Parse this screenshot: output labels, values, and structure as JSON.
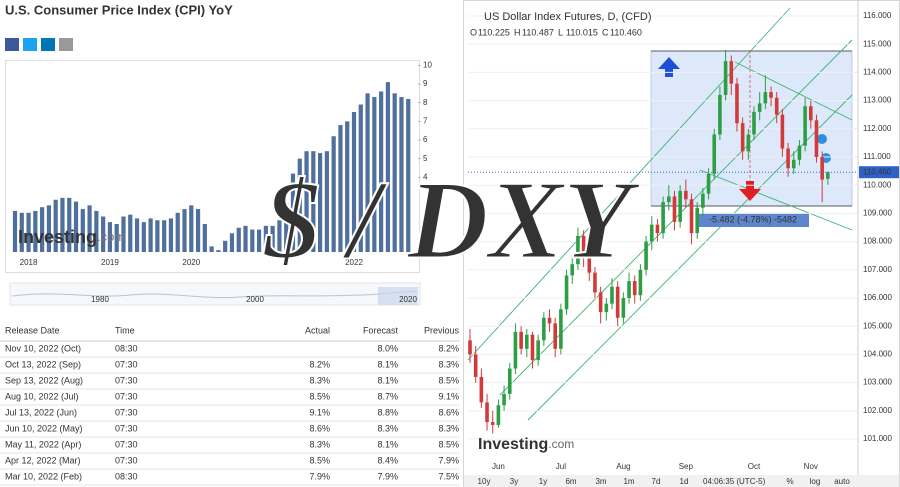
{
  "page": {
    "cpi_title": "U.S. Consumer Price Index (CPI) YoY",
    "watermark": [
      "Investing",
      ".com"
    ],
    "overlay_text": "$ / DXY"
  },
  "chart_data": [
    {
      "type": "bar",
      "categories": [
        null,
        null,
        "2018",
        null,
        null,
        null,
        null,
        null,
        null,
        null,
        null,
        null,
        null,
        null,
        "2019",
        null,
        null,
        null,
        null,
        null,
        null,
        null,
        null,
        null,
        null,
        null,
        "2020",
        null,
        null,
        null,
        null,
        null,
        null,
        null,
        null,
        null,
        null,
        null,
        null,
        null,
        null,
        null,
        null,
        null,
        null,
        null,
        null,
        null,
        null,
        null,
        "2022",
        null,
        null,
        null,
        null,
        null,
        null,
        null,
        null
      ],
      "values": [
        2.2,
        2.1,
        2.1,
        2.2,
        2.4,
        2.5,
        2.8,
        2.9,
        2.9,
        2.7,
        2.3,
        2.5,
        2.2,
        1.9,
        1.6,
        1.5,
        1.9,
        2.0,
        1.8,
        1.6,
        1.8,
        1.7,
        1.7,
        1.8,
        2.1,
        2.3,
        2.5,
        2.3,
        1.5,
        0.3,
        0.1,
        0.6,
        1.0,
        1.3,
        1.4,
        1.2,
        1.2,
        1.4,
        1.4,
        1.7,
        2.6,
        4.2,
        5.0,
        5.4,
        5.4,
        5.3,
        5.4,
        6.2,
        6.8,
        7.0,
        7.5,
        7.9,
        8.5,
        8.3,
        8.6,
        9.1,
        8.5,
        8.3,
        8.2
      ],
      "color": "#4f6f9c",
      "ylim": [
        0,
        10.5
      ],
      "yticks": [
        4,
        5,
        6,
        7,
        8,
        9,
        10
      ],
      "navigator_labels": [
        "1980",
        "2000",
        "2020"
      ]
    },
    {
      "type": "candlestick",
      "title": "US Dollar Index Futures, D, (CFD)",
      "ohlc_labels": [
        "O",
        "H",
        "L",
        "C"
      ],
      "last_labels": {
        "open": "110.225",
        "high": "110.487",
        "low": "110.015",
        "close": "110.460"
      },
      "categories": [
        null,
        null,
        null,
        null,
        null,
        "Jun",
        null,
        null,
        null,
        null,
        null,
        null,
        null,
        null,
        null,
        null,
        "Jul",
        null,
        null,
        null,
        null,
        null,
        null,
        null,
        null,
        null,
        null,
        "Aug",
        null,
        null,
        null,
        null,
        null,
        null,
        null,
        null,
        null,
        null,
        "Sep",
        null,
        null,
        null,
        null,
        null,
        null,
        null,
        null,
        null,
        null,
        null,
        "Oct",
        null,
        null,
        null,
        null,
        null,
        null,
        null,
        null,
        null,
        "Nov",
        null,
        null,
        null
      ],
      "open": [
        104.5,
        104.0,
        103.2,
        102.3,
        101.6,
        101.5,
        102.2,
        102.6,
        103.5,
        104.8,
        104.2,
        104.7,
        103.8,
        104.5,
        105.3,
        105.1,
        104.2,
        105.6,
        106.8,
        107.2,
        108.2,
        107.4,
        106.9,
        106.2,
        105.5,
        105.8,
        106.4,
        105.3,
        106.0,
        106.6,
        106.1,
        107.0,
        108.0,
        108.6,
        108.3,
        109.4,
        109.6,
        108.7,
        109.8,
        109.5,
        108.3,
        109.2,
        109.7,
        110.4,
        111.8,
        113.2,
        114.4,
        113.6,
        112.2,
        111.2,
        111.8,
        112.6,
        112.9,
        113.3,
        113.1,
        112.5,
        111.3,
        110.6,
        110.9,
        111.4,
        112.8,
        112.3,
        111.0,
        110.225
      ],
      "high": [
        104.9,
        104.3,
        103.5,
        102.6,
        102.0,
        102.4,
        102.9,
        103.7,
        105.1,
        105.0,
        104.9,
        104.8,
        104.7,
        105.5,
        105.6,
        105.3,
        105.8,
        107.0,
        107.5,
        108.5,
        108.4,
        107.7,
        107.1,
        106.4,
        106.0,
        106.7,
        106.6,
        106.2,
        106.9,
        106.8,
        107.2,
        108.2,
        108.9,
        108.8,
        109.6,
        110.0,
        109.8,
        110.0,
        110.2,
        109.7,
        109.4,
        109.9,
        110.6,
        112.0,
        113.5,
        114.8,
        114.6,
        113.8,
        112.4,
        112.0,
        112.8,
        113.3,
        113.9,
        113.5,
        113.3,
        112.7,
        111.5,
        111.2,
        111.6,
        113.1,
        113.0,
        112.5,
        111.2,
        110.487
      ],
      "low": [
        103.7,
        103.0,
        102.1,
        101.3,
        101.2,
        101.4,
        102.0,
        102.4,
        103.3,
        104.0,
        103.9,
        103.5,
        103.6,
        104.3,
        104.8,
        103.9,
        104.0,
        105.4,
        106.5,
        107.0,
        107.1,
        106.6,
        106.0,
        105.1,
        105.2,
        105.6,
        105.0,
        105.1,
        105.8,
        105.8,
        105.9,
        106.8,
        107.7,
        108.0,
        108.1,
        109.1,
        108.4,
        108.5,
        109.2,
        107.9,
        108.1,
        108.9,
        109.5,
        110.2,
        111.6,
        113.0,
        113.2,
        111.9,
        110.9,
        110.9,
        111.6,
        112.3,
        112.7,
        112.8,
        112.2,
        111.0,
        110.3,
        110.4,
        110.7,
        111.2,
        112.0,
        110.8,
        109.4,
        110.015
      ],
      "close": [
        104.0,
        103.2,
        102.3,
        101.6,
        101.5,
        102.2,
        102.6,
        103.5,
        104.8,
        104.2,
        104.7,
        103.8,
        104.5,
        105.3,
        105.1,
        104.2,
        105.6,
        106.8,
        107.2,
        108.2,
        107.4,
        106.9,
        106.2,
        105.5,
        105.8,
        106.4,
        105.3,
        106.0,
        106.6,
        106.1,
        107.0,
        108.0,
        108.6,
        108.3,
        109.4,
        109.6,
        108.7,
        109.8,
        109.5,
        108.3,
        109.2,
        109.7,
        110.4,
        111.8,
        113.2,
        114.4,
        113.6,
        112.2,
        111.2,
        111.8,
        112.6,
        112.9,
        113.3,
        113.1,
        112.5,
        111.3,
        110.6,
        110.9,
        111.4,
        112.8,
        112.3,
        111.0,
        110.2,
        110.46
      ],
      "up_color": "#2e9e45",
      "down_color": "#d23a3a",
      "ylim": [
        100.2,
        116.3
      ],
      "yticks": [
        {
          "value": 101,
          "label": "101.000"
        },
        {
          "value": 102,
          "label": "102.000"
        },
        {
          "value": 103,
          "label": "103.000"
        },
        {
          "value": 104,
          "label": "104.000"
        },
        {
          "value": 105,
          "label": "105.000"
        },
        {
          "value": 106,
          "label": "106.000"
        },
        {
          "value": 107,
          "label": "107.000"
        },
        {
          "value": 108,
          "label": "108.000"
        },
        {
          "value": 109,
          "label": "109.000"
        },
        {
          "value": 110,
          "label": "110.000"
        },
        {
          "value": 111,
          "label": "111.000"
        },
        {
          "value": 112,
          "label": "112.000"
        },
        {
          "value": 113,
          "label": "113.000"
        },
        {
          "value": 114,
          "label": "114.000"
        },
        {
          "value": 115,
          "label": "115.000"
        },
        {
          "value": 116,
          "label": "116.000"
        }
      ],
      "grid": true,
      "annotation": "-5.482 (-4.78%) -5482"
    }
  ],
  "table": {
    "columns": [
      "Release Date",
      "Time",
      "Actual",
      "Forecast",
      "Previous"
    ],
    "rows": [
      [
        "Nov 10, 2022 (Oct)",
        "08:30",
        null,
        "8.0%",
        "8.2%"
      ],
      [
        "Oct 13, 2022 (Sep)",
        "07:30",
        "8.2%",
        "8.1%",
        "8.3%"
      ],
      [
        "Sep 13, 2022 (Aug)",
        "07:30",
        "8.3%",
        "8.1%",
        "8.5%"
      ],
      [
        "Aug 10, 2022 (Jul)",
        "07:30",
        "8.5%",
        "8.7%",
        "9.1%"
      ],
      [
        "Jul 13, 2022 (Jun)",
        "07:30",
        "9.1%",
        "8.8%",
        "8.6%"
      ],
      [
        "Jun 10, 2022 (May)",
        "07:30",
        "8.6%",
        "8.3%",
        "8.3%"
      ],
      [
        "May 11, 2022 (Apr)",
        "07:30",
        "8.3%",
        "8.1%",
        "8.5%"
      ],
      [
        "Apr 12, 2022 (Mar)",
        "07:30",
        "8.5%",
        "8.4%",
        "7.9%"
      ],
      [
        "Mar 10, 2022 (Feb)",
        "08:30",
        "7.9%",
        "7.9%",
        "7.5%"
      ]
    ],
    "actual_colors": [
      null,
      "#2e9b2e",
      "#2e9b2e",
      "#e03030",
      "#2e9b2e",
      "#2e9b2e",
      "#2e9b2e",
      "#2e9b2e",
      "#333333"
    ]
  },
  "range_bar": {
    "buttons": [
      "10y",
      "3y",
      "1y",
      "6m",
      "3m",
      "1m",
      "7d",
      "1d"
    ],
    "clock": "04:06:35 (UTC-5)",
    "options": [
      "%",
      "log",
      "auto"
    ]
  }
}
